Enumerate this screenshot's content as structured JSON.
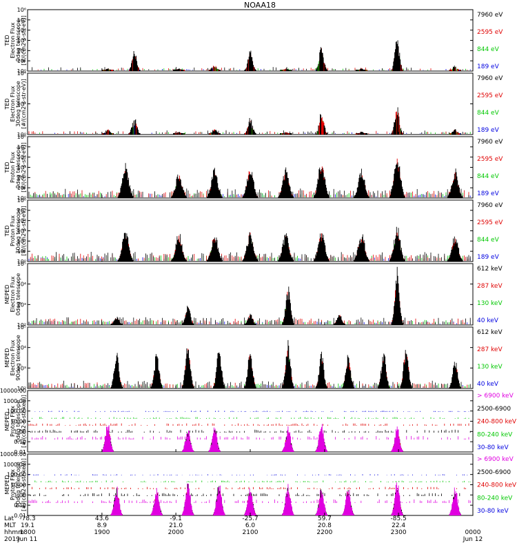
{
  "chart_data": {
    "type": "line",
    "title": "NOAA18",
    "x_range": [
      "1800",
      "0000"
    ],
    "grid": false,
    "panels": [
      {
        "name": "ted-electron-0deg",
        "ylabel": [
          "TED",
          "Electron Flux",
          "0deg telescope",
          "[#/(cm2-s-str-eV)]"
        ],
        "yticks": [
          "10⁰",
          "10¹",
          "10²",
          "10³",
          "10⁴",
          "10⁵",
          "10⁶"
        ],
        "ylim": [
          1,
          1000000
        ],
        "log": true,
        "legend": [
          {
            "label": "7960 eV",
            "color": "#000000"
          },
          {
            "label": "2595 eV",
            "color": "#e00000"
          },
          {
            "label": "844 eV",
            "color": "#00c800"
          },
          {
            "label": "189 eV",
            "color": "#0000e0"
          }
        ],
        "style": "bursts",
        "passes": [
          [
            0.18,
            0.05
          ],
          [
            0.24,
            0.35
          ],
          [
            0.34,
            0.05
          ],
          [
            0.42,
            0.12
          ],
          [
            0.5,
            0.35
          ],
          [
            0.58,
            0.05
          ],
          [
            0.66,
            0.45
          ],
          [
            0.75,
            0.05
          ],
          [
            0.83,
            0.55
          ],
          [
            0.96,
            0.1
          ]
        ]
      },
      {
        "name": "ted-electron-30deg",
        "ylabel": [
          "TED",
          "Electron Flux",
          "30deg telescope",
          "[#/(cm2-s-str-eV)]"
        ],
        "yticks": [
          "10⁰",
          "10²",
          "10⁴"
        ],
        "ylim": [
          1,
          100000
        ],
        "log": true,
        "legend": [
          {
            "label": "7960 eV",
            "color": "#000000"
          },
          {
            "label": "2595 eV",
            "color": "#e00000"
          },
          {
            "label": "844 eV",
            "color": "#00c800"
          },
          {
            "label": "189 eV",
            "color": "#0000e0"
          }
        ],
        "style": "bursts",
        "passes": [
          [
            0.18,
            0.1
          ],
          [
            0.24,
            0.3
          ],
          [
            0.34,
            0.05
          ],
          [
            0.42,
            0.1
          ],
          [
            0.5,
            0.3
          ],
          [
            0.58,
            0.05
          ],
          [
            0.66,
            0.4
          ],
          [
            0.75,
            0.05
          ],
          [
            0.83,
            0.5
          ],
          [
            0.96,
            0.1
          ]
        ]
      },
      {
        "name": "ted-proton-0deg",
        "ylabel": [
          "TED",
          "Proton Flux",
          "0deg telescope",
          "[#/(cm2-s-str-eV)]"
        ],
        "yticks": [
          "10⁰",
          "10¹",
          "10²",
          "10³",
          "10⁴",
          "10⁵",
          "10⁶"
        ],
        "ylim": [
          1,
          1000000
        ],
        "log": true,
        "legend": [
          {
            "label": "7960 eV",
            "color": "#000000"
          },
          {
            "label": "2595 eV",
            "color": "#e00000"
          },
          {
            "label": "844 eV",
            "color": "#00c800"
          },
          {
            "label": "189 eV",
            "color": "#0000e0"
          }
        ],
        "style": "proton",
        "passes": [
          [
            0.22,
            0.6
          ],
          [
            0.34,
            0.45
          ],
          [
            0.42,
            0.5
          ],
          [
            0.5,
            0.55
          ],
          [
            0.58,
            0.5
          ],
          [
            0.66,
            0.65
          ],
          [
            0.75,
            0.5
          ],
          [
            0.83,
            0.75
          ],
          [
            0.96,
            0.5
          ]
        ]
      },
      {
        "name": "ted-proton-30deg",
        "ylabel": [
          "TED",
          "Proton Flux",
          "30deg telescope",
          "[#/(cm2-s-str-eV)]"
        ],
        "yticks": [
          "10⁰",
          "10¹",
          "10²",
          "10³",
          "10⁴",
          "10⁵",
          "10⁶"
        ],
        "ylim": [
          1,
          1000000
        ],
        "log": true,
        "legend": [
          {
            "label": "7960 eV",
            "color": "#000000"
          },
          {
            "label": "2595 eV",
            "color": "#e00000"
          },
          {
            "label": "844 eV",
            "color": "#00c800"
          },
          {
            "label": "189 eV",
            "color": "#0000e0"
          }
        ],
        "style": "proton",
        "passes": [
          [
            0.22,
            0.55
          ],
          [
            0.34,
            0.5
          ],
          [
            0.42,
            0.5
          ],
          [
            0.5,
            0.55
          ],
          [
            0.58,
            0.5
          ],
          [
            0.66,
            0.55
          ],
          [
            0.75,
            0.5
          ],
          [
            0.83,
            0.6
          ],
          [
            0.96,
            0.45
          ]
        ]
      },
      {
        "name": "meped-electron-0deg",
        "ylabel": [
          "MEPED",
          "Electron Flux",
          "0deg telescope"
        ],
        "yticks": [
          "10²",
          "10³",
          "10⁴",
          "10⁵"
        ],
        "ylim": [
          100,
          200000
        ],
        "log": true,
        "legend": [
          {
            "label": "612 keV",
            "color": "#000000"
          },
          {
            "label": "287 keV",
            "color": "#e00000"
          },
          {
            "label": "130 keV",
            "color": "#00c800"
          },
          {
            "label": "40 keV",
            "color": "#0000e0"
          }
        ],
        "style": "meped",
        "passes": [
          [
            0.2,
            0.15
          ],
          [
            0.36,
            0.35
          ],
          [
            0.5,
            0.2
          ],
          [
            0.585,
            0.65
          ],
          [
            0.7,
            0.2
          ],
          [
            0.83,
            0.95
          ]
        ]
      },
      {
        "name": "meped-electron-90deg",
        "ylabel": [
          "MEPED",
          "Electron Flux",
          "90deg telescope"
        ],
        "yticks": [
          "10²",
          "10³",
          "10⁴",
          "10⁵"
        ],
        "ylim": [
          100,
          200000
        ],
        "log": true,
        "legend": [
          {
            "label": "612 keV",
            "color": "#000000"
          },
          {
            "label": "287 keV",
            "color": "#e00000"
          },
          {
            "label": "130 keV",
            "color": "#00c800"
          },
          {
            "label": "40 keV",
            "color": "#0000e0"
          }
        ],
        "style": "meped",
        "passes": [
          [
            0.2,
            0.6
          ],
          [
            0.29,
            0.65
          ],
          [
            0.36,
            0.8
          ],
          [
            0.43,
            0.7
          ],
          [
            0.5,
            0.65
          ],
          [
            0.585,
            0.8
          ],
          [
            0.66,
            0.6
          ],
          [
            0.72,
            0.6
          ],
          [
            0.8,
            0.7
          ],
          [
            0.85,
            0.75
          ],
          [
            0.96,
            0.5
          ]
        ]
      },
      {
        "name": "meped-proton-0deg",
        "ylabel": [
          "MEPED",
          "Proton Flux",
          "0deg telescope",
          "[#/(cm2-s-str-keV)]"
        ],
        "yticks": [
          "0.01",
          "0.10",
          "1.00",
          "10.00",
          "100.00",
          "1000.00",
          "10000.00"
        ],
        "ylim": [
          0.01,
          10000
        ],
        "log": true,
        "legend": [
          {
            "label": "> 6900 keV",
            "color": "#e000e0"
          },
          {
            "label": "2500-6900",
            "color": "#000000"
          },
          {
            "label": "240-800 keV",
            "color": "#e00000"
          },
          {
            "label": "80-240 keV",
            "color": "#00c800"
          },
          {
            "label": "30-80 keV",
            "color": "#0000e0"
          }
        ],
        "style": "mepedp",
        "passes": [
          [
            0.18,
            0.55
          ],
          [
            0.36,
            0.4
          ],
          [
            0.42,
            0.45
          ],
          [
            0.585,
            0.45
          ],
          [
            0.66,
            0.5
          ],
          [
            0.83,
            0.45
          ]
        ]
      },
      {
        "name": "meped-proton-90deg",
        "ylabel": [
          "MEPED",
          "Proton Flux",
          "90deg telescope",
          "[#/(cm2-s-str-keV)]"
        ],
        "yticks": [
          "0.01",
          "0.10",
          "1.00",
          "10.00",
          "100.00",
          "1000.00",
          "10000.00"
        ],
        "ylim": [
          0.01,
          10000
        ],
        "log": true,
        "legend": [
          {
            "label": "> 6900 keV",
            "color": "#e000e0"
          },
          {
            "label": "2500-6900",
            "color": "#000000"
          },
          {
            "label": "240-800 keV",
            "color": "#e00000"
          },
          {
            "label": "80-240 keV",
            "color": "#00c800"
          },
          {
            "label": "30-80 keV",
            "color": "#0000e0"
          }
        ],
        "style": "mepedp",
        "passes": [
          [
            0.2,
            0.5
          ],
          [
            0.29,
            0.5
          ],
          [
            0.36,
            0.6
          ],
          [
            0.43,
            0.6
          ],
          [
            0.5,
            0.55
          ],
          [
            0.585,
            0.55
          ],
          [
            0.66,
            0.5
          ],
          [
            0.72,
            0.5
          ],
          [
            0.83,
            0.6
          ],
          [
            0.96,
            0.5
          ]
        ]
      }
    ],
    "xaxis": {
      "row_labels": [
        "Lat",
        "MLT",
        "hhmm",
        "2019"
      ],
      "ticks": [
        {
          "pos": 0.0,
          "lat": "-78.3",
          "mlt": "19.1",
          "hhmm": "1800",
          "date": "Jun 11"
        },
        {
          "pos": 0.167,
          "lat": "43.6",
          "mlt": "8.9",
          "hhmm": "1900",
          "date": ""
        },
        {
          "pos": 0.333,
          "lat": "-9.1",
          "mlt": "21.0",
          "hhmm": "2000",
          "date": ""
        },
        {
          "pos": 0.5,
          "lat": "-25.7",
          "mlt": "6.0",
          "hhmm": "2100",
          "date": ""
        },
        {
          "pos": 0.667,
          "lat": "59.7",
          "mlt": "20.8",
          "hhmm": "2200",
          "date": ""
        },
        {
          "pos": 0.833,
          "lat": "-85.5",
          "mlt": "22.4",
          "hhmm": "2300",
          "date": ""
        },
        {
          "pos": 1.0,
          "lat": "",
          "mlt": "",
          "hhmm": "0000",
          "date": "Jun 12"
        }
      ]
    }
  }
}
